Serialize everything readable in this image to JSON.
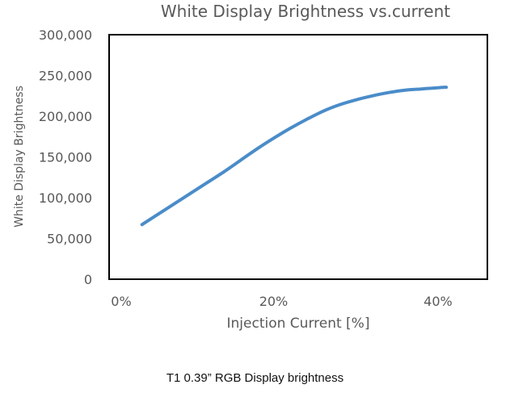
{
  "chart_data": {
    "type": "line",
    "title": "White Display Brightness vs.current",
    "xlabel": "Injection Current [%]",
    "ylabel": "White Display Brightness",
    "xlim": [
      0,
      46
    ],
    "ylim": [
      0,
      300000
    ],
    "x_ticks": [
      0,
      20,
      40
    ],
    "x_tick_labels": [
      "0%",
      "20%",
      "40%"
    ],
    "y_ticks": [
      0,
      50000,
      100000,
      150000,
      200000,
      250000,
      300000
    ],
    "y_tick_labels": [
      "0",
      "50,000",
      "100,000",
      "150,000",
      "200,000",
      "250,000",
      "300,000"
    ],
    "grid": false,
    "series": [
      {
        "color": "#4a8cc9",
        "x": [
          4,
          6,
          8,
          10,
          12,
          14,
          16,
          18,
          20,
          22,
          24,
          26,
          28,
          30,
          32,
          34,
          36,
          38,
          40,
          41
        ],
        "y": [
          67000,
          80000,
          93000,
          106000,
          119000,
          132000,
          146000,
          160000,
          173000,
          185000,
          196000,
          206000,
          214000,
          220000,
          225000,
          229000,
          232000,
          233500,
          235000,
          235500
        ]
      }
    ]
  },
  "caption": "T1 0.39” RGB Display brightness"
}
